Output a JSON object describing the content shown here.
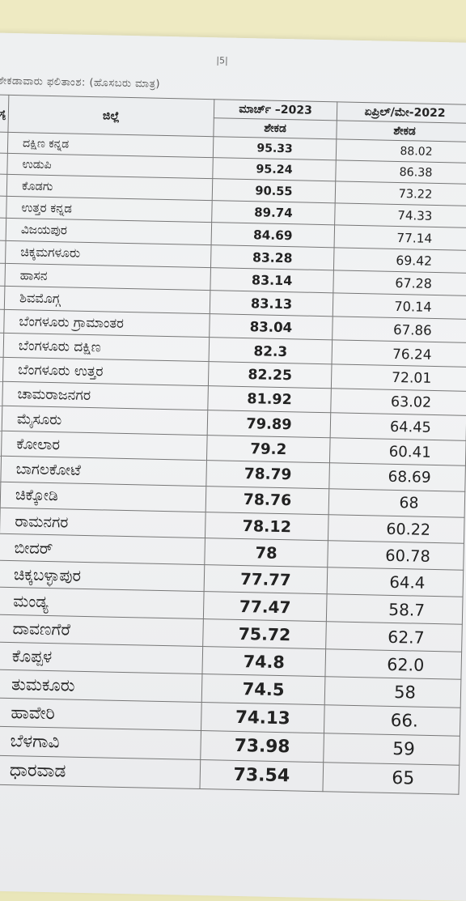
{
  "page_number": "|5|",
  "caption": "ಶೇಕಡಾವಾರು ಫಲಿತಾಂಶ: (ಹೊಸಬರು ಮಾತ್ರ)",
  "table": {
    "headers": {
      "serial": "ಮ ಸ್ಯೆ",
      "district": "ಜಿಲ್ಲೆ",
      "march_2023": "ಮಾರ್ಚ್ –2023",
      "april_may_2022": "ಏಪ್ರಿಲ್/ಮೇ-2022",
      "percent": "ಶೇಕಡ"
    },
    "rows": [
      {
        "district": "ದಕ್ಷಿಣ ಕನ್ನಡ",
        "march_2023": "95.33",
        "april_may_2022": "88.02"
      },
      {
        "district": "ಉಡುಪಿ",
        "march_2023": "95.24",
        "april_may_2022": "86.38"
      },
      {
        "district": "ಕೊಡಗು",
        "march_2023": "90.55",
        "april_may_2022": "73.22"
      },
      {
        "district": "ಉತ್ತರ ಕನ್ನಡ",
        "march_2023": "89.74",
        "april_may_2022": "74.33"
      },
      {
        "district": "ವಿಜಯಪುರ",
        "march_2023": "84.69",
        "april_may_2022": "77.14"
      },
      {
        "district": "ಚಿಕ್ಕಮಗಳೂರು",
        "march_2023": "83.28",
        "april_may_2022": "69.42"
      },
      {
        "district": "ಹಾಸನ",
        "march_2023": "83.14",
        "april_may_2022": "67.28"
      },
      {
        "district": "ಶಿವಮೊಗ್ಗ",
        "march_2023": "83.13",
        "april_may_2022": "70.14"
      },
      {
        "district": "ಬೆಂಗಳೂರು ಗ್ರಾಮಾಂತರ",
        "march_2023": "83.04",
        "april_may_2022": "67.86"
      },
      {
        "district": "ಬೆಂಗಳೂರು ದಕ್ಷಿಣ",
        "march_2023": "82.3",
        "april_may_2022": "76.24"
      },
      {
        "district": "ಬೆಂಗಳೂರು ಉತ್ತರ",
        "march_2023": "82.25",
        "april_may_2022": "72.01"
      },
      {
        "district": "ಚಾಮರಾಜನಗರ",
        "march_2023": "81.92",
        "april_may_2022": "63.02"
      },
      {
        "district": "ಮೈಸೂರು",
        "march_2023": "79.89",
        "april_may_2022": "64.45"
      },
      {
        "district": "ಕೋಲಾರ",
        "march_2023": "79.2",
        "april_may_2022": "60.41"
      },
      {
        "district": "ಬಾಗಲಕೋಟೆ",
        "march_2023": "78.79",
        "april_may_2022": "68.69"
      },
      {
        "district": "ಚಿಕ್ಕೋಡಿ",
        "march_2023": "78.76",
        "april_may_2022": "68"
      },
      {
        "district": "ರಾಮನಗರ",
        "march_2023": "78.12",
        "april_may_2022": "60.22"
      },
      {
        "district": "ಬೀದರ್",
        "march_2023": "78",
        "april_may_2022": "60.78"
      },
      {
        "district": "ಚಿಕ್ಕಬಳ್ಳಾಪುರ",
        "march_2023": "77.77",
        "april_may_2022": "64.4"
      },
      {
        "district": "ಮಂಡ್ಯ",
        "march_2023": "77.47",
        "april_may_2022": "58.7"
      },
      {
        "district": "ದಾವಣಗೆರೆ",
        "march_2023": "75.72",
        "april_may_2022": "62.7"
      },
      {
        "district": "ಕೊಪ್ಪಳ",
        "march_2023": "74.8",
        "april_may_2022": "62.0"
      },
      {
        "district": "ತುಮಕೂರು",
        "march_2023": "74.5",
        "april_may_2022": "58"
      },
      {
        "district": "ಹಾವೇರಿ",
        "march_2023": "74.13",
        "april_may_2022": "66."
      },
      {
        "district": "ಬೆಳಗಾವಿ",
        "march_2023": "73.98",
        "april_may_2022": "59"
      },
      {
        "district": "ಧಾರವಾಡ",
        "march_2023": "73.54",
        "april_may_2022": "65"
      }
    ]
  }
}
